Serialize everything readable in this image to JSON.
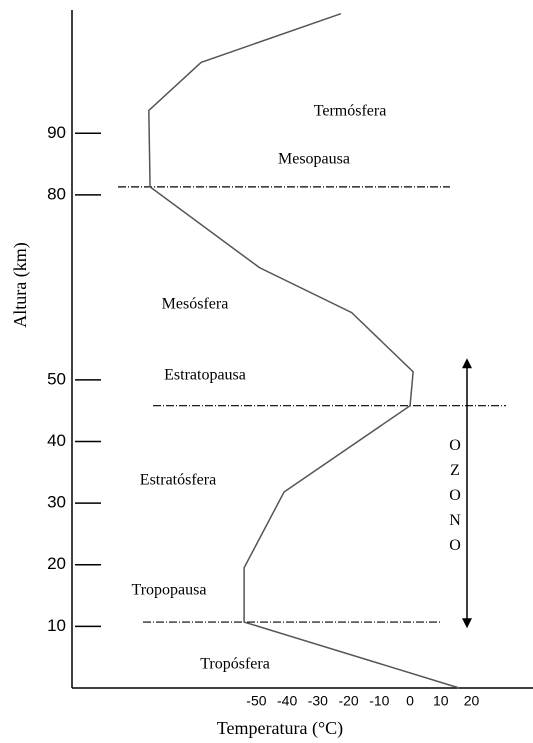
{
  "chart_data": {
    "type": "line",
    "x_label": "Temperatura (°C)",
    "y_label": "Altura (km)",
    "x": [
      -22.5,
      -68,
      -85,
      -84.6,
      -49,
      -19,
      1,
      0,
      -41,
      -54,
      -54,
      16
    ],
    "values": [
      109.4,
      101.5,
      93.7,
      81.3,
      68.2,
      60.9,
      51.3,
      45.8,
      31.8,
      19.5,
      10.7,
      0
    ],
    "color": "#555555",
    "xlim": [
      -110,
      40
    ],
    "xticks": [
      -50,
      -40,
      -30,
      -20,
      -10,
      0,
      10,
      20
    ],
    "ylim": [
      0,
      110
    ],
    "yticks": [
      10,
      20,
      30,
      40,
      50,
      80,
      90
    ],
    "boundaries": [
      81.3,
      45.8,
      10.7
    ],
    "layers": [
      "Termósfera",
      "Mesopausa",
      "Mesósfera",
      "Estratopausa",
      "Estratósfera",
      "Tropopausa",
      "Tropósfera"
    ],
    "ozone_label": "OZONO",
    "ozone_range": [
      9.7,
      53.5
    ]
  }
}
